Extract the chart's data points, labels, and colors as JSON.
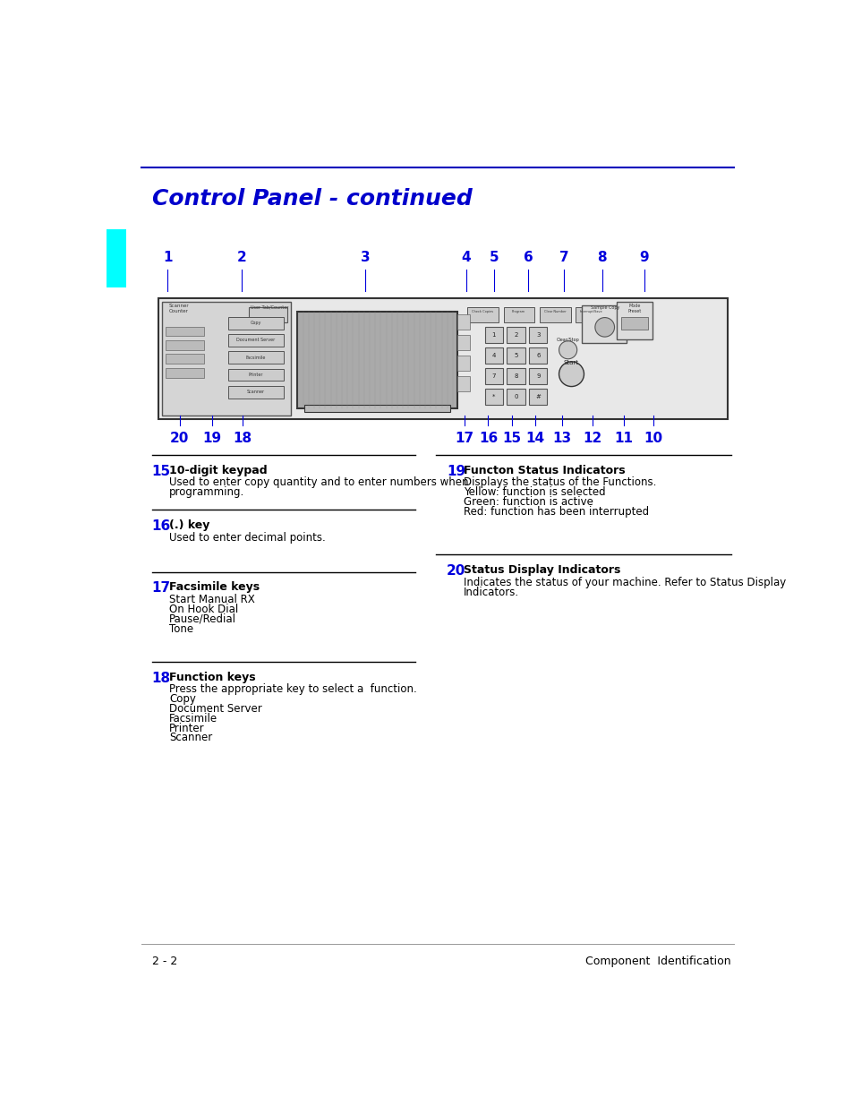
{
  "title": "Control Panel - continued",
  "title_color": "#0000CC",
  "title_fontsize": 18,
  "header_line_color": "#0000BB",
  "section_line_color": "#000000",
  "bg_color": "#FFFFFF",
  "blue_color": "#0000DD",
  "cyan_rect_color": "#00FFFF",
  "footer_left": "2 - 2",
  "footer_right": "Component  Identification",
  "footer_color": "#000000",
  "footer_fontsize": 9,
  "entries": [
    {
      "num": "15",
      "heading": "10-digit keypad",
      "body": [
        "Used to enter copy quantity and to enter numbers when",
        "programming."
      ],
      "col": 0
    },
    {
      "num": "16",
      "heading": "(.) key",
      "body": [
        "Used to enter decimal points."
      ],
      "col": 0
    },
    {
      "num": "17",
      "heading": "Facsimile keys",
      "body": [
        "Start Manual RX",
        "On Hook Dial",
        "Pause/Redial",
        "Tone"
      ],
      "col": 0
    },
    {
      "num": "18",
      "heading": "Function keys",
      "body": [
        "Press the appropriate key to select a  function.",
        "Copy",
        "Document Server",
        "Facsimile",
        "Printer",
        "Scanner"
      ],
      "col": 0
    },
    {
      "num": "19",
      "heading": "Functon Status Indicators",
      "body": [
        "Displays the status of the Functions.",
        "Yellow: function is selected",
        "Green: function is active",
        "Red: function has been interrupted"
      ],
      "col": 1
    },
    {
      "num": "20",
      "heading": "Status Display Indicators",
      "body": [
        "Indicates the status of your machine. Refer to Status Display",
        "Indicators."
      ],
      "col": 1
    }
  ]
}
